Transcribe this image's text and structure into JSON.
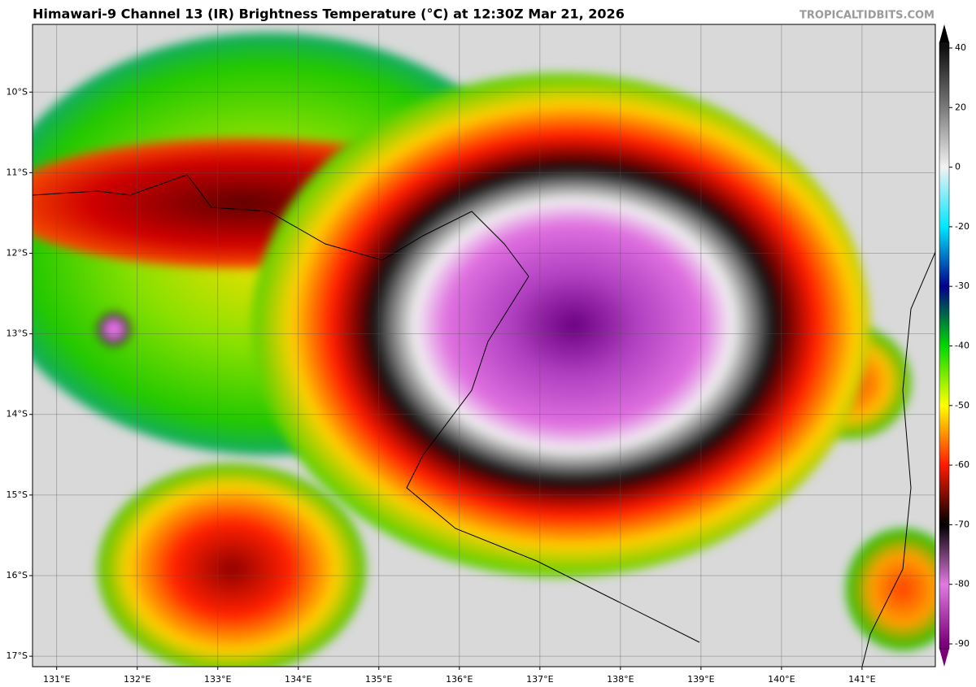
{
  "map": {
    "title": "Himawari-9 Channel 13 (IR) Brightness Temperature (°C) at 12:30Z Mar 21, 2026",
    "credit": "TROPICALTIDBITS.COM",
    "xlim": [
      130.7,
      141.91
    ],
    "ylim": [
      -17.13,
      -9.16
    ],
    "grid": true,
    "lon_ticks": [
      {
        "value": 131,
        "label": "131°E"
      },
      {
        "value": 132,
        "label": "132°E"
      },
      {
        "value": 133,
        "label": "133°E"
      },
      {
        "value": 134,
        "label": "134°E"
      },
      {
        "value": 135,
        "label": "135°E"
      },
      {
        "value": 136,
        "label": "136°E"
      },
      {
        "value": 137,
        "label": "137°E"
      },
      {
        "value": 138,
        "label": "138°E"
      },
      {
        "value": 139,
        "label": "139°E"
      },
      {
        "value": 140,
        "label": "140°E"
      },
      {
        "value": 141,
        "label": "141°E"
      }
    ],
    "lat_ticks": [
      {
        "value": -10,
        "label": "10°S"
      },
      {
        "value": -11,
        "label": "11°S"
      },
      {
        "value": -12,
        "label": "12°S"
      },
      {
        "value": -13,
        "label": "13°S"
      },
      {
        "value": -14,
        "label": "14°S"
      },
      {
        "value": -15,
        "label": "15°S"
      },
      {
        "value": -16,
        "label": "16°S"
      },
      {
        "value": -17,
        "label": "17°S"
      }
    ]
  },
  "colorbar": {
    "ticks": [
      40,
      20,
      0,
      -20,
      -30,
      -40,
      -50,
      -60,
      -70,
      -80,
      -90
    ],
    "colors": [
      "#101010",
      "#7a7a7a",
      "#f2f2f2",
      "#00e8ff",
      "#00008b",
      "#00d800",
      "#ffff00",
      "#ff1a00",
      "#000000",
      "#e27ae2",
      "#7a007a"
    ]
  }
}
